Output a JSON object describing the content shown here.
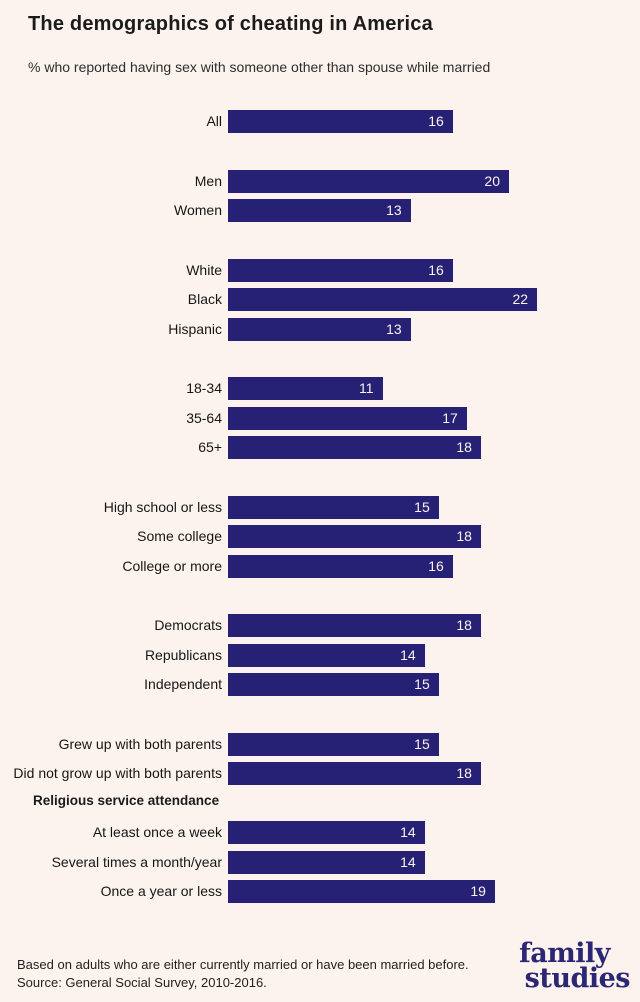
{
  "colors": {
    "background": "#fcf3ee",
    "bar": "#262175",
    "bar_value_text": "#fbf2ec",
    "heading_text": "#1b1b1b",
    "logo": "#2b2775"
  },
  "chart_data": {
    "type": "bar",
    "orientation": "horizontal",
    "title": "The demographics of cheating in America",
    "subtitle": "% who reported having sex with someone other than spouse while married",
    "unit": "percent",
    "xlim": [
      0,
      22
    ],
    "grid": false,
    "legend": false,
    "value_labels": "inside-end",
    "groups": [
      {
        "rows": [
          {
            "label": "All",
            "value": 16
          }
        ]
      },
      {
        "rows": [
          {
            "label": "Men",
            "value": 20
          },
          {
            "label": "Women",
            "value": 13
          }
        ]
      },
      {
        "rows": [
          {
            "label": "White",
            "value": 16
          },
          {
            "label": "Black",
            "value": 22
          },
          {
            "label": "Hispanic",
            "value": 13
          }
        ]
      },
      {
        "rows": [
          {
            "label": "18-34",
            "value": 11
          },
          {
            "label": "35-64",
            "value": 17
          },
          {
            "label": "65+",
            "value": 18
          }
        ]
      },
      {
        "rows": [
          {
            "label": "High school or less",
            "value": 15
          },
          {
            "label": "Some college",
            "value": 18
          },
          {
            "label": "College or more",
            "value": 16
          }
        ]
      },
      {
        "rows": [
          {
            "label": "Democrats",
            "value": 18
          },
          {
            "label": "Republicans",
            "value": 14
          },
          {
            "label": "Independent",
            "value": 15
          }
        ]
      },
      {
        "rows": [
          {
            "label": "Grew up with both parents",
            "value": 15
          },
          {
            "label": "Did not grow up with both parents",
            "value": 18
          }
        ]
      },
      {
        "heading": "Religious service attendance",
        "rows": [
          {
            "label": "At least once a week",
            "value": 14
          },
          {
            "label": "Several times a month/year",
            "value": 14
          },
          {
            "label": "Once a year or less",
            "value": 19
          }
        ]
      }
    ],
    "note": "Based on adults who are either currently married or have been married before.",
    "source": "Source: General Social Survey, 2010-2016."
  },
  "logo": {
    "line1": "family",
    "line2": "studies"
  }
}
